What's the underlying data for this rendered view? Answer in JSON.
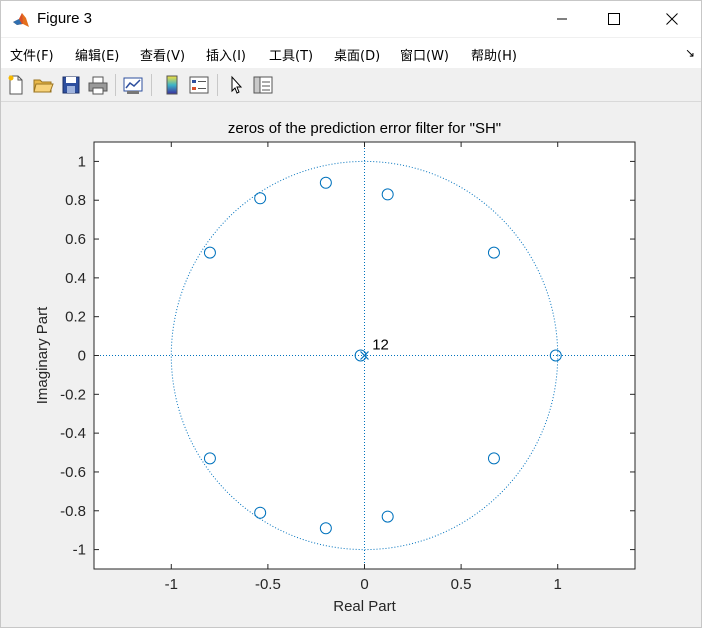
{
  "window": {
    "title": "Figure 3",
    "controls": {
      "minimize": "minimize",
      "maximize": "maximize",
      "close": "close"
    }
  },
  "menu": {
    "items": [
      "文件(F)",
      "编辑(E)",
      "查看(V)",
      "插入(I)",
      "工具(T)",
      "桌面(D)",
      "窗口(W)",
      "帮助(H)"
    ]
  },
  "toolbar": {
    "buttons": [
      "new-figure-icon",
      "open-file-icon",
      "save-icon",
      "print-icon",
      "link-plot-icon",
      "colorbar-icon",
      "legend-icon",
      "select-arrow-icon",
      "property-editor-icon"
    ]
  },
  "colors": {
    "marker": "#0072bd",
    "axes": "#262626",
    "grid": "#0072bd",
    "figure_bg": "#f0f0f0"
  },
  "chart_data": {
    "type": "scatter",
    "title": "zeros of the prediction error filter for \"SH\"",
    "xlabel": "Real Part",
    "ylabel": "Imaginary Part",
    "xlim": [
      -1.4,
      1.4
    ],
    "ylim": [
      -1.1,
      1.1
    ],
    "xticks": [
      -1,
      -0.5,
      0,
      0.5,
      1
    ],
    "xtick_labels": [
      "-1",
      "-0.5",
      "0",
      "0.5",
      "1"
    ],
    "yticks": [
      1,
      0.8,
      0.6,
      0.4,
      0.2,
      0,
      -0.2,
      -0.4,
      -0.6,
      -0.8,
      -1
    ],
    "ytick_labels": [
      "1",
      "0.8",
      "0.6",
      "0.4",
      "0.2",
      "0",
      "-0.2",
      "-0.4",
      "-0.6",
      "-0.8",
      "-1"
    ],
    "unit_circle": true,
    "grid": false,
    "zeros": [
      {
        "x": -0.2,
        "y": 0.89
      },
      {
        "x": 0.12,
        "y": 0.83
      },
      {
        "x": -0.54,
        "y": 0.81
      },
      {
        "x": -0.8,
        "y": 0.53
      },
      {
        "x": 0.67,
        "y": 0.53
      },
      {
        "x": 0.99,
        "y": 0.0
      },
      {
        "x": -0.02,
        "y": 0.0
      },
      {
        "x": -0.8,
        "y": -0.53
      },
      {
        "x": 0.67,
        "y": -0.53
      },
      {
        "x": -0.54,
        "y": -0.81
      },
      {
        "x": -0.2,
        "y": -0.89
      },
      {
        "x": 0.12,
        "y": -0.83
      }
    ],
    "poles": [
      {
        "x": 0.0,
        "y": 0.0
      }
    ],
    "annotations": [
      {
        "text": "12",
        "x": 0.04,
        "y": 0.03
      }
    ]
  }
}
